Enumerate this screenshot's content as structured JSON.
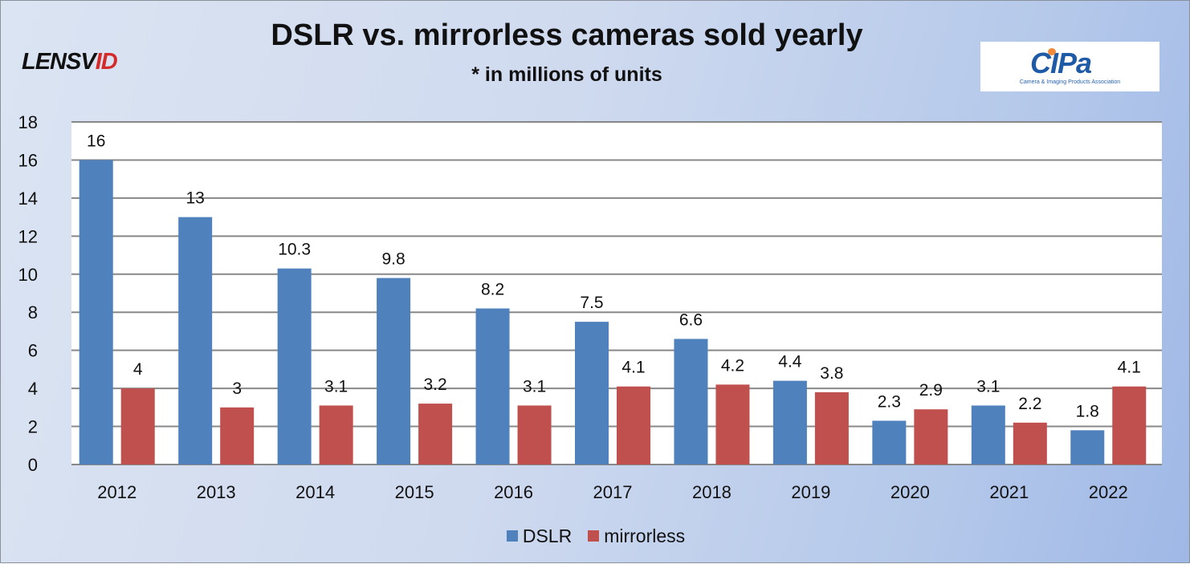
{
  "branding": {
    "logo_left_a": "LENSV",
    "logo_left_b": "ID",
    "logo_right_mark": "CIPa",
    "logo_right_text": "Camera & Imaging Products Association"
  },
  "chart_data": {
    "type": "bar",
    "title": "DSLR vs. mirrorless cameras sold yearly",
    "subtitle": "* in millions of units",
    "xlabel": "",
    "ylabel": "",
    "categories": [
      "2012",
      "2013",
      "2014",
      "2015",
      "2016",
      "2017",
      "2018",
      "2019",
      "2020",
      "2021",
      "2022"
    ],
    "series": [
      {
        "name": "DSLR",
        "color": "#4f81bd",
        "values": [
          16,
          13,
          10.3,
          9.8,
          8.2,
          7.5,
          6.6,
          4.4,
          2.3,
          3.1,
          1.8
        ]
      },
      {
        "name": "mirrorless",
        "color": "#c0504d",
        "values": [
          4,
          3,
          3.1,
          3.2,
          3.1,
          4.1,
          4.2,
          3.8,
          2.9,
          2.2,
          4.1
        ]
      }
    ],
    "ylim": [
      0,
      18
    ],
    "yticks": [
      0,
      2,
      4,
      6,
      8,
      10,
      12,
      14,
      16,
      18
    ],
    "grid": true,
    "legend": "bottom-center"
  }
}
